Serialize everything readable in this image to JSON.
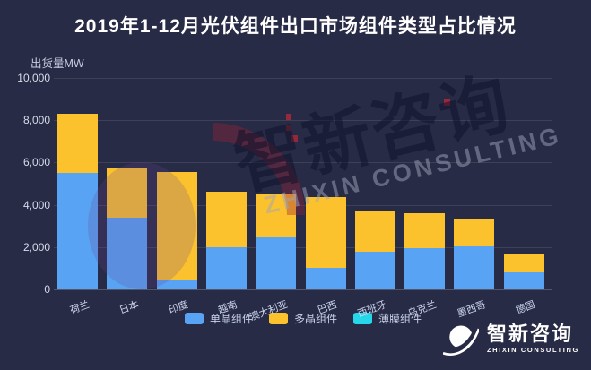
{
  "header": {
    "title": "2019年1-12月光伏组件出口市场组件类型占比情况"
  },
  "chart_data": {
    "type": "bar",
    "stacked": true,
    "title": "2019年1-12月光伏组件出口市场组件类型占比情况",
    "ylabel": "出货量MW",
    "xlabel": "",
    "ylim": [
      0,
      10000
    ],
    "ytick_step": 2000,
    "grid": true,
    "legend_position": "bottom",
    "categories": [
      "荷兰",
      "日本",
      "印度",
      "越南",
      "澳大利亚",
      "巴西",
      "西班牙",
      "乌克兰",
      "墨西哥",
      "德国"
    ],
    "series": [
      {
        "name": "单晶组件",
        "color": "#58a3f3",
        "values": [
          5500,
          3400,
          450,
          2000,
          2500,
          1000,
          1800,
          1950,
          2050,
          800
        ]
      },
      {
        "name": "多晶组件",
        "color": "#fcc22d",
        "values": [
          2800,
          2300,
          5100,
          2600,
          2050,
          3350,
          1900,
          1650,
          1300,
          850
        ]
      },
      {
        "name": "薄膜组件",
        "color": "#25d7e9",
        "values": [
          0,
          0,
          0,
          0,
          0,
          0,
          0,
          0,
          0,
          0
        ]
      }
    ],
    "totals": [
      8300,
      5700,
      5550,
      4600,
      4550,
      4350,
      3700,
      3600,
      3350,
      1650
    ]
  },
  "watermark": {
    "text": "智新咨询",
    "subtext": "ZHIXIN CONSULTING"
  },
  "logo": {
    "name": "智新咨询",
    "subname": "ZHIXIN CONSULTING"
  },
  "colors": {
    "background": "#282b45",
    "mono_blue": "#58a3f3",
    "poly_yellow": "#fcc22d",
    "thinfilm_cyan": "#25d7e9",
    "title_text": "#ffffff",
    "axis_text": "#d8dcec"
  }
}
